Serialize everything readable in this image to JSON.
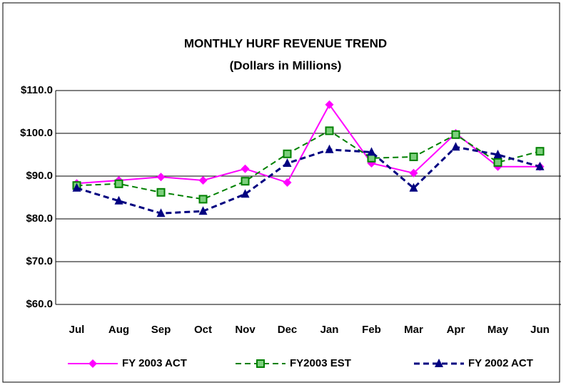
{
  "chart_data": {
    "type": "line",
    "title": "MONTHLY HURF REVENUE TREND",
    "subtitle": "(Dollars in Millions)",
    "categories": [
      "Jul",
      "Aug",
      "Sep",
      "Oct",
      "Nov",
      "Dec",
      "Jan",
      "Feb",
      "Mar",
      "Apr",
      "May",
      "Jun"
    ],
    "series": [
      {
        "name": "FY 2003 ACT",
        "color": "#ff00ff",
        "dash": false,
        "marker": "diamond",
        "values": [
          88.3,
          89,
          89.8,
          89,
          91.7,
          88.5,
          106.7,
          93,
          90.7,
          100,
          92.2,
          92.2
        ]
      },
      {
        "name": "FY2003 EST",
        "color": "#008000",
        "dash": true,
        "marker": "square",
        "values": [
          87.8,
          88.2,
          86.2,
          84.6,
          88.8,
          95.2,
          100.6,
          94.2,
          94.5,
          99.7,
          93.2,
          95.8
        ]
      },
      {
        "name": "FY 2002 ACT",
        "color": "#000080",
        "dash": true,
        "marker": "triangle",
        "values": [
          87.2,
          84.2,
          81.3,
          81.8,
          85.8,
          93,
          96.2,
          95.6,
          87.2,
          96.8,
          95,
          92.2
        ]
      }
    ],
    "ylim": [
      60,
      110
    ],
    "yticks": [
      {
        "value": 60,
        "label": "$60.0"
      },
      {
        "value": 70,
        "label": "$70.0"
      },
      {
        "value": 80,
        "label": "$80.0"
      },
      {
        "value": 90,
        "label": "$90.0"
      },
      {
        "value": 100,
        "label": "$100.0"
      },
      {
        "value": 110,
        "label": "$110.0"
      }
    ],
    "grid": true,
    "legend": "bottom"
  }
}
